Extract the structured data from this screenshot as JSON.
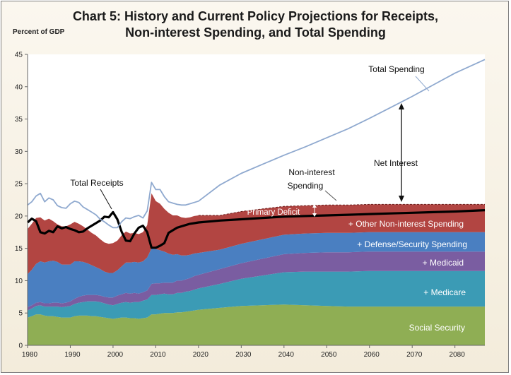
{
  "chart_data": {
    "type": "area",
    "title_line1": "Chart 5:  History and Current Policy Projections  for Receipts,",
    "title_line2": "Non-interest Spending, and Total Spending",
    "ylabel": "Percent of GDP",
    "xlim": [
      1980,
      2087
    ],
    "ylim": [
      0,
      45
    ],
    "x_ticks": [
      1980,
      1990,
      2000,
      2010,
      2020,
      2030,
      2040,
      2050,
      2060,
      2070,
      2080
    ],
    "y_ticks": [
      0,
      5,
      10,
      15,
      20,
      25,
      30,
      35,
      40,
      45
    ],
    "x": [
      1980,
      1981,
      1982,
      1983,
      1984,
      1985,
      1986,
      1987,
      1988,
      1989,
      1990,
      1991,
      1992,
      1993,
      1994,
      1995,
      1996,
      1997,
      1998,
      1999,
      2000,
      2001,
      2002,
      2003,
      2004,
      2005,
      2006,
      2007,
      2008,
      2009,
      2010,
      2011,
      2012,
      2013,
      2014,
      2015,
      2016,
      2017,
      2018,
      2019,
      2020,
      2025,
      2030,
      2035,
      2040,
      2045,
      2050,
      2055,
      2060,
      2065,
      2070,
      2075,
      2080,
      2087
    ],
    "stacked_series": [
      {
        "name": "Social Security",
        "color": "#8fae54",
        "values": [
          4.3,
          4.5,
          4.8,
          4.8,
          4.6,
          4.5,
          4.5,
          4.4,
          4.3,
          4.3,
          4.3,
          4.5,
          4.6,
          4.6,
          4.6,
          4.5,
          4.5,
          4.4,
          4.3,
          4.2,
          4.1,
          4.2,
          4.3,
          4.3,
          4.2,
          4.2,
          4.1,
          4.2,
          4.3,
          4.8,
          4.8,
          4.9,
          5.0,
          5.0,
          5.0,
          5.1,
          5.1,
          5.2,
          5.3,
          5.4,
          5.5,
          5.8,
          6.1,
          6.2,
          6.3,
          6.2,
          6.1,
          6.0,
          6.0,
          6.0,
          6.0,
          6.0,
          6.0,
          6.0
        ]
      },
      {
        "name": "Medicare",
        "color": "#3b9bb5",
        "values": [
          1.1,
          1.2,
          1.3,
          1.4,
          1.4,
          1.5,
          1.5,
          1.6,
          1.6,
          1.7,
          1.8,
          1.9,
          2.0,
          2.1,
          2.2,
          2.3,
          2.3,
          2.3,
          2.2,
          2.1,
          2.1,
          2.2,
          2.3,
          2.4,
          2.4,
          2.5,
          2.6,
          2.7,
          2.8,
          3.0,
          3.0,
          3.0,
          3.0,
          2.9,
          2.9,
          3.0,
          3.0,
          3.1,
          3.1,
          3.2,
          3.3,
          3.7,
          4.2,
          4.6,
          5.0,
          5.2,
          5.3,
          5.4,
          5.5,
          5.5,
          5.5,
          5.5,
          5.5,
          5.5
        ]
      },
      {
        "name": "Medicaid",
        "color": "#7a5da1",
        "values": [
          0.5,
          0.5,
          0.5,
          0.5,
          0.5,
          0.5,
          0.6,
          0.6,
          0.6,
          0.6,
          0.7,
          0.8,
          0.9,
          1.0,
          1.0,
          1.0,
          1.0,
          1.0,
          1.0,
          1.1,
          1.2,
          1.3,
          1.3,
          1.4,
          1.4,
          1.4,
          1.3,
          1.3,
          1.4,
          1.7,
          1.8,
          1.7,
          1.7,
          1.8,
          1.8,
          1.9,
          1.9,
          1.9,
          2.0,
          2.1,
          2.1,
          2.3,
          2.4,
          2.6,
          2.8,
          2.9,
          3.0,
          3.0,
          3.0,
          3.0,
          3.0,
          3.0,
          3.0,
          3.0
        ]
      },
      {
        "name": "Defense/Security Spending",
        "color": "#4a7fc1",
        "values": [
          5.1,
          5.5,
          6.0,
          6.3,
          6.3,
          6.5,
          6.5,
          6.3,
          6.0,
          5.9,
          5.7,
          5.8,
          5.5,
          5.2,
          4.9,
          4.6,
          4.3,
          4.1,
          3.9,
          3.8,
          3.8,
          3.9,
          4.3,
          4.7,
          4.8,
          4.8,
          4.8,
          4.8,
          5.1,
          5.5,
          5.3,
          5.1,
          4.8,
          4.5,
          4.3,
          4.1,
          3.9,
          3.7,
          3.6,
          3.5,
          3.4,
          3.0,
          3.0,
          3.0,
          3.0,
          3.0,
          3.0,
          3.0,
          3.0,
          3.0,
          3.0,
          3.0,
          3.0,
          3.0
        ]
      },
      {
        "name": "Other Non-interest Spending",
        "color": "#b24542",
        "values": [
          7.0,
          7.1,
          7.1,
          6.8,
          6.5,
          6.6,
          6.1,
          5.8,
          5.9,
          5.9,
          6.2,
          6.1,
          5.8,
          5.5,
          5.2,
          5.0,
          4.9,
          4.6,
          4.5,
          4.5,
          4.6,
          4.6,
          4.8,
          4.8,
          4.5,
          4.5,
          4.4,
          4.5,
          5.0,
          8.5,
          7.4,
          7.2,
          6.6,
          6.3,
          6.1,
          6.0,
          5.9,
          5.8,
          5.8,
          5.8,
          5.8,
          5.3,
          5.0,
          4.7,
          4.4,
          4.3,
          4.3,
          4.3,
          4.3,
          4.3,
          4.3,
          4.3,
          4.3,
          4.3
        ]
      }
    ],
    "series": [
      {
        "name": "Total Receipts",
        "color": "#000000",
        "values": [
          19.0,
          19.6,
          19.2,
          17.5,
          17.3,
          17.7,
          17.5,
          18.4,
          18.1,
          18.3,
          18.0,
          17.8,
          17.5,
          17.6,
          18.1,
          18.5,
          18.9,
          19.3,
          19.9,
          19.8,
          20.6,
          19.5,
          17.6,
          16.2,
          16.1,
          17.3,
          18.2,
          18.5,
          17.5,
          15.1,
          15.1,
          15.4,
          15.8,
          17.4,
          17.8,
          18.2,
          18.4,
          18.6,
          18.8,
          18.9,
          19.0,
          19.3,
          19.5,
          19.7,
          19.9,
          20.0,
          20.1,
          20.2,
          20.3,
          20.4,
          20.5,
          20.6,
          20.7,
          20.9
        ]
      },
      {
        "name": "Total Spending",
        "color": "#8fa9cf",
        "values": [
          21.7,
          22.2,
          23.1,
          23.5,
          22.2,
          22.8,
          22.5,
          21.6,
          21.3,
          21.2,
          21.9,
          22.3,
          22.1,
          21.4,
          21.0,
          20.6,
          20.2,
          19.5,
          19.1,
          18.6,
          18.2,
          18.2,
          19.1,
          19.7,
          19.6,
          19.9,
          20.1,
          19.7,
          20.8,
          25.2,
          24.1,
          24.1,
          23.0,
          22.2,
          22.0,
          21.8,
          21.7,
          21.7,
          21.9,
          22.1,
          22.3,
          24.8,
          26.6,
          28.0,
          29.4,
          30.7,
          32.1,
          33.5,
          35.1,
          36.8,
          38.5,
          40.3,
          42.1,
          44.2
        ]
      }
    ],
    "annotations": {
      "total_spending": "Total Spending",
      "net_interest": "Net Interest",
      "non_interest_1": "Non-interest",
      "non_interest_2": "Spending",
      "total_receipts": "Total Receipts",
      "primary_deficit": "Primary Deficit",
      "other": "+ Other Non-interest Spending",
      "defense": "+ Defense/Security Spending",
      "medicaid": "+ Medicaid",
      "medicare": "+  Medicare",
      "social_security": "Social Security"
    }
  }
}
